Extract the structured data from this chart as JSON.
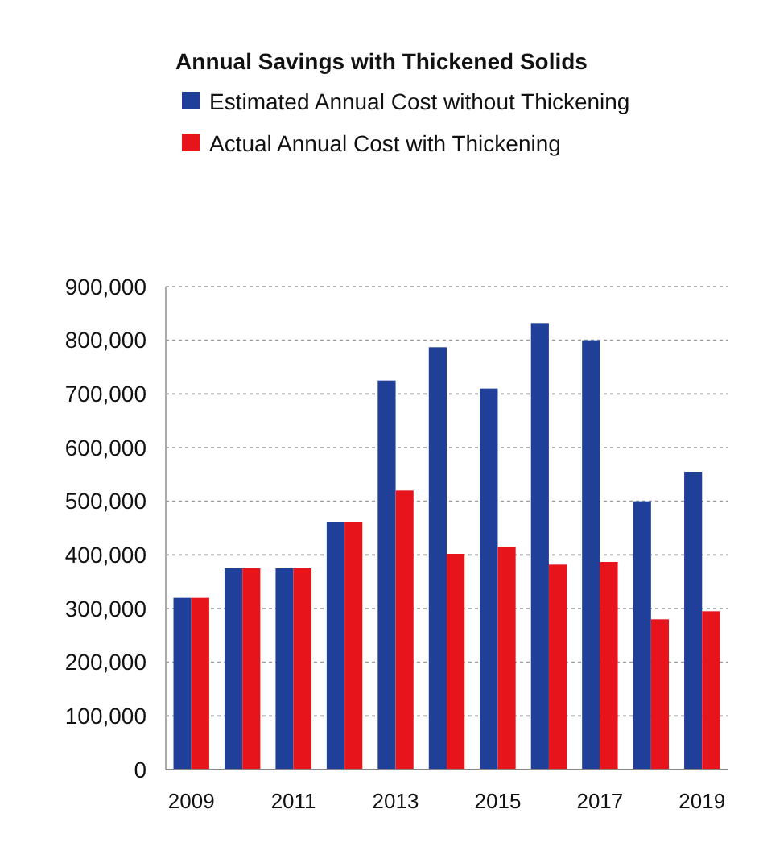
{
  "chart_data": {
    "type": "bar",
    "title": "Annual Savings with Thickened Solids",
    "categories": [
      "2009",
      null,
      "2011",
      null,
      "2013",
      null,
      "2015",
      null,
      "2017",
      null,
      "2019"
    ],
    "series": [
      {
        "name": "Estimated Annual Cost without Thickening",
        "color": "#1f3f99",
        "values": [
          320000,
          375000,
          375000,
          462000,
          725000,
          787000,
          710000,
          832000,
          800000,
          500000,
          555000
        ]
      },
      {
        "name": "Actual Annual Cost with Thickening",
        "color": "#e8141c",
        "values": [
          320000,
          375000,
          375000,
          462000,
          520000,
          402000,
          415000,
          382000,
          387000,
          280000,
          295000
        ]
      }
    ],
    "ylim": [
      0,
      900000
    ],
    "yticks": [
      {
        "value": 0,
        "label": "0"
      },
      {
        "value": 100000,
        "label": "100,000"
      },
      {
        "value": 200000,
        "label": "200,000"
      },
      {
        "value": 300000,
        "label": "300,000"
      },
      {
        "value": 400000,
        "label": "400,000"
      },
      {
        "value": 500000,
        "label": "500,000"
      },
      {
        "value": 600000,
        "label": "600,000"
      },
      {
        "value": 700000,
        "label": "700,000"
      },
      {
        "value": 800000,
        "label": "800,000"
      },
      {
        "value": 900000,
        "label": "900,000"
      }
    ],
    "grid": "y",
    "legend": "top"
  }
}
